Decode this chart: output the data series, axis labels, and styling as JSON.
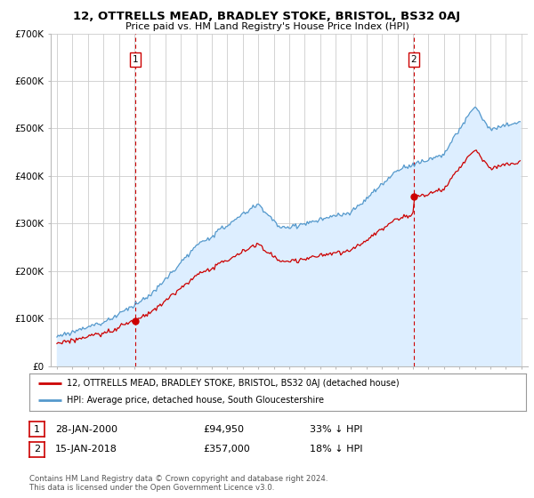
{
  "title": "12, OTTRELLS MEAD, BRADLEY STOKE, BRISTOL, BS32 0AJ",
  "subtitle": "Price paid vs. HM Land Registry's House Price Index (HPI)",
  "legend_line1": "12, OTTRELLS MEAD, BRADLEY STOKE, BRISTOL, BS32 0AJ (detached house)",
  "legend_line2": "HPI: Average price, detached house, South Gloucestershire",
  "sale1_date": "28-JAN-2000",
  "sale1_price": "£94,950",
  "sale1_hpi": "33% ↓ HPI",
  "sale1_year": 2000.07,
  "sale1_value": 94950,
  "sale2_date": "15-JAN-2018",
  "sale2_price": "£357,000",
  "sale2_hpi": "18% ↓ HPI",
  "sale2_year": 2018.04,
  "sale2_value": 357000,
  "footer": "Contains HM Land Registry data © Crown copyright and database right 2024.\nThis data is licensed under the Open Government Licence v3.0.",
  "hpi_color": "#5599cc",
  "hpi_fill_color": "#ddeeff",
  "price_color": "#cc0000",
  "vline_color": "#cc0000",
  "background_color": "#ffffff",
  "grid_color": "#cccccc",
  "ylim": [
    0,
    700000
  ],
  "yticks": [
    0,
    100000,
    200000,
    300000,
    400000,
    500000,
    600000,
    700000
  ],
  "ytick_labels": [
    "£0",
    "£100K",
    "£200K",
    "£300K",
    "£400K",
    "£500K",
    "£600K",
    "£700K"
  ],
  "xlim_start": 1994.6,
  "xlim_end": 2025.4
}
